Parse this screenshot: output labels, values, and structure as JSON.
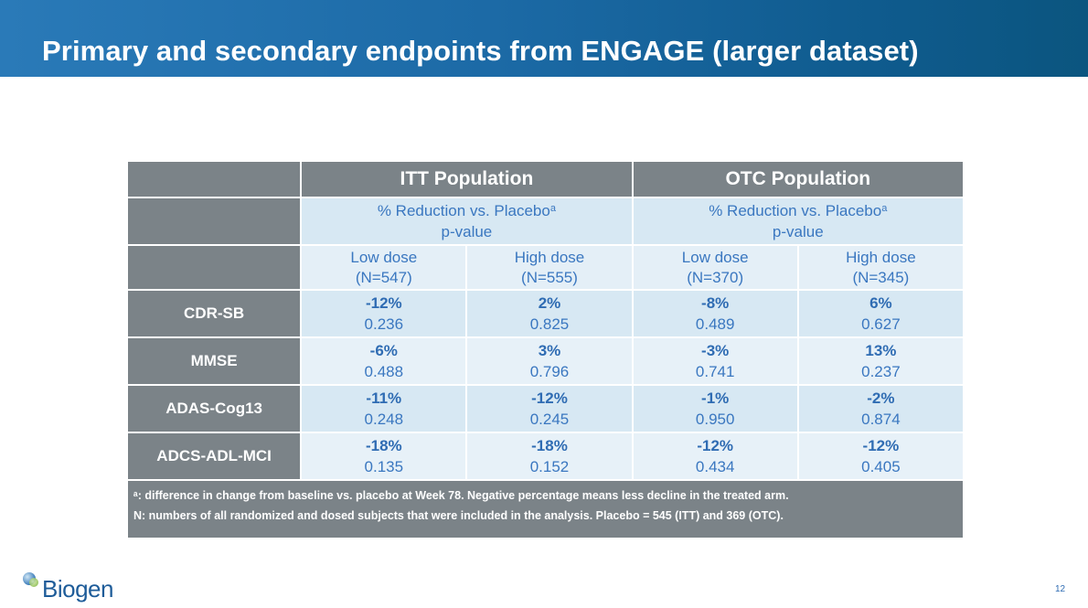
{
  "slide": {
    "title": "Primary and secondary endpoints from ENGAGE (larger dataset)",
    "page_number": "12",
    "logo_text": "Biogen"
  },
  "table": {
    "populations": [
      "ITT Population",
      "OTC Population"
    ],
    "subheader_line1": "% Reduction vs. Placebo",
    "subheader_sup": "a",
    "subheader_line2": "p-value",
    "doses": [
      {
        "name": "Low dose",
        "n": "(N=547)"
      },
      {
        "name": "High dose",
        "n": "(N=555)"
      },
      {
        "name": "Low dose",
        "n": "(N=370)"
      },
      {
        "name": "High dose",
        "n": "(N=345)"
      }
    ],
    "rows": [
      {
        "label": "CDR-SB",
        "cells": [
          {
            "pct": "-12%",
            "p": "0.236"
          },
          {
            "pct": "2%",
            "p": "0.825"
          },
          {
            "pct": "-8%",
            "p": "0.489"
          },
          {
            "pct": "6%",
            "p": "0.627"
          }
        ]
      },
      {
        "label": "MMSE",
        "cells": [
          {
            "pct": "-6%",
            "p": "0.488"
          },
          {
            "pct": "3%",
            "p": "0.796"
          },
          {
            "pct": "-3%",
            "p": "0.741"
          },
          {
            "pct": "13%",
            "p": "0.237"
          }
        ]
      },
      {
        "label": "ADAS-Cog13",
        "cells": [
          {
            "pct": "-11%",
            "p": "0.248"
          },
          {
            "pct": "-12%",
            "p": "0.245"
          },
          {
            "pct": "-1%",
            "p": "0.950"
          },
          {
            "pct": "-2%",
            "p": "0.874"
          }
        ]
      },
      {
        "label": "ADCS-ADL-MCI",
        "cells": [
          {
            "pct": "-18%",
            "p": "0.135"
          },
          {
            "pct": "-18%",
            "p": "0.152"
          },
          {
            "pct": "-12%",
            "p": "0.434"
          },
          {
            "pct": "-12%",
            "p": "0.405"
          }
        ]
      }
    ],
    "footnotes": [
      "ᵃ: difference in change from baseline vs. placebo at Week 78. Negative percentage means less decline in the treated arm.",
      "N: numbers of all randomized and dosed subjects that were included in the analysis. Placebo = 545 (ITT) and 369 (OTC)."
    ]
  },
  "colors": {
    "header_gradient_start": "#2a7ab8",
    "header_gradient_end": "#0b557f",
    "table_gray": "#7b8388",
    "cell_blue_light": "#d7e8f3",
    "cell_blue_lighter": "#e7f1f8",
    "value_blue": "#2f6cb3"
  }
}
